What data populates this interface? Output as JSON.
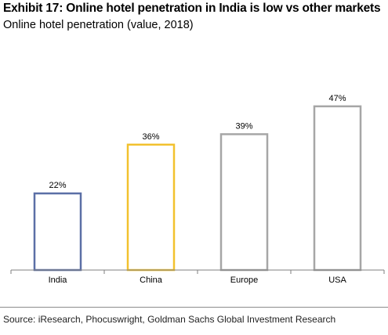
{
  "header": {
    "title": "Exhibit 17: Online hotel penetration in India is low vs other markets",
    "subtitle": "Online hotel penetration (value, 2018)"
  },
  "footer": {
    "source": "Source: iResearch, Phocuswright, Goldman Sachs Global Investment Research"
  },
  "chart_data": {
    "type": "bar",
    "title": "",
    "xlabel": "",
    "ylabel": "",
    "categories": [
      "India",
      "China",
      "Europe",
      "USA"
    ],
    "values": [
      22,
      36,
      39,
      47
    ],
    "value_labels": [
      "22%",
      "36%",
      "39%",
      "47%"
    ],
    "ylim": [
      0,
      50
    ],
    "grid": false,
    "legend": "none",
    "bar_style": "outline",
    "colors": [
      "#5b6fa6",
      "#f2c12e",
      "#a6a6a6",
      "#a6a6a6"
    ]
  }
}
